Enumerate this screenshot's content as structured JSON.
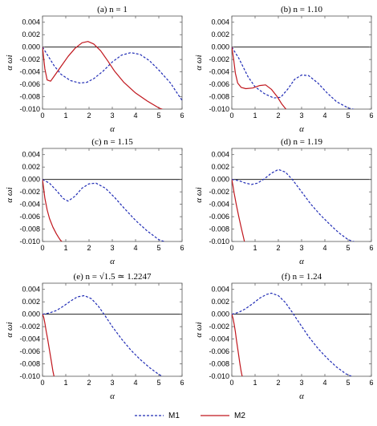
{
  "legend": {
    "m1_label": "M1",
    "m2_label": "M2",
    "m1_color": "#1f2bb5",
    "m2_color": "#c0161d"
  },
  "chart_data": [
    {
      "type": "line",
      "title": "(a) n = 1",
      "xlabel": "α",
      "ylabel": "α ωi",
      "xlim": [
        0,
        6
      ],
      "ylim": [
        -0.01,
        0.005
      ],
      "xticks": [
        "0",
        "1",
        "2",
        "3",
        "4",
        "5",
        "6"
      ],
      "yticks": [
        "0.004",
        "0.002",
        "0.000",
        "-0.002",
        "-0.004",
        "-0.006",
        "-0.008",
        "-0.010"
      ],
      "series": [
        {
          "name": "M1",
          "style": "dashed",
          "x": [
            0,
            0.2,
            0.5,
            0.8,
            1.2,
            1.6,
            1.9,
            2.2,
            2.6,
            3.0,
            3.4,
            3.8,
            4.2,
            4.6,
            5.0,
            5.5,
            6.0
          ],
          "y": [
            0.0,
            -0.0012,
            -0.003,
            -0.0044,
            -0.0054,
            -0.0058,
            -0.0057,
            -0.0051,
            -0.0039,
            -0.0024,
            -0.0013,
            -0.0009,
            -0.0012,
            -0.0022,
            -0.0037,
            -0.0058,
            -0.0086
          ]
        },
        {
          "name": "M2",
          "style": "solid",
          "x": [
            0,
            0.1,
            0.2,
            0.35,
            0.5,
            0.8,
            1.1,
            1.4,
            1.7,
            1.95,
            2.2,
            2.5,
            2.8,
            3.1,
            3.5,
            4.0,
            4.5,
            5.0,
            5.2
          ],
          "y": [
            0.0,
            -0.0035,
            -0.0053,
            -0.0055,
            -0.0047,
            -0.0031,
            -0.0015,
            -0.0002,
            0.0007,
            0.0009,
            0.0005,
            -0.0006,
            -0.0022,
            -0.0039,
            -0.0057,
            -0.0074,
            -0.0087,
            -0.0098,
            -0.0101
          ]
        }
      ]
    },
    {
      "type": "line",
      "title": "(b) n = 1.10",
      "xlabel": "α",
      "ylabel": "α ωi",
      "xlim": [
        0,
        6
      ],
      "ylim": [
        -0.01,
        0.005
      ],
      "xticks": [
        "0",
        "1",
        "2",
        "3",
        "4",
        "5",
        "6"
      ],
      "yticks": [
        "0.004",
        "0.002",
        "0.000",
        "-0.002",
        "-0.004",
        "-0.006",
        "-0.008",
        "-0.010"
      ],
      "series": [
        {
          "name": "M1",
          "style": "dashed",
          "x": [
            0,
            0.3,
            0.7,
            1.0,
            1.4,
            1.8,
            2.1,
            2.4,
            2.7,
            3.0,
            3.3,
            3.7,
            4.1,
            4.5,
            5.0,
            5.3
          ],
          "y": [
            0.0,
            -0.0018,
            -0.0048,
            -0.0064,
            -0.0075,
            -0.0082,
            -0.0081,
            -0.0068,
            -0.0052,
            -0.0045,
            -0.0046,
            -0.0058,
            -0.0074,
            -0.0088,
            -0.0098,
            -0.0101
          ]
        },
        {
          "name": "M2",
          "style": "solid",
          "x": [
            0,
            0.08,
            0.15,
            0.25,
            0.4,
            0.6,
            0.9,
            1.2,
            1.45,
            1.7,
            1.95,
            2.15,
            2.35
          ],
          "y": [
            0.0,
            -0.002,
            -0.0042,
            -0.0058,
            -0.0065,
            -0.0067,
            -0.0066,
            -0.0062,
            -0.0061,
            -0.0068,
            -0.008,
            -0.0092,
            -0.0101
          ]
        }
      ]
    },
    {
      "type": "line",
      "title": "(c) n = 1.15",
      "xlabel": "α",
      "ylabel": "α ωi",
      "xlim": [
        0,
        6
      ],
      "ylim": [
        -0.01,
        0.005
      ],
      "xticks": [
        "0",
        "1",
        "2",
        "3",
        "4",
        "5",
        "6"
      ],
      "yticks": [
        "0.004",
        "0.002",
        "0.000",
        "-0.002",
        "-0.004",
        "-0.006",
        "-0.008",
        "-0.010"
      ],
      "series": [
        {
          "name": "M1",
          "style": "dashed",
          "x": [
            0,
            0.3,
            0.6,
            0.9,
            1.1,
            1.4,
            1.7,
            2.0,
            2.3,
            2.7,
            3.1,
            3.5,
            4.0,
            4.5,
            5.0,
            5.3
          ],
          "y": [
            0.0,
            -0.0006,
            -0.0018,
            -0.0031,
            -0.0035,
            -0.0027,
            -0.0014,
            -0.0007,
            -0.0006,
            -0.0014,
            -0.0029,
            -0.0046,
            -0.0066,
            -0.0083,
            -0.0097,
            -0.0101
          ]
        },
        {
          "name": "M2",
          "style": "solid",
          "x": [
            0,
            0.05,
            0.1,
            0.2,
            0.3,
            0.45,
            0.6,
            0.75,
            0.85
          ],
          "y": [
            0.0,
            -0.0015,
            -0.003,
            -0.0049,
            -0.0063,
            -0.0077,
            -0.0088,
            -0.0097,
            -0.0101
          ]
        }
      ]
    },
    {
      "type": "line",
      "title": "(d) n = 1.19",
      "xlabel": "α",
      "ylabel": "α ωi",
      "xlim": [
        0,
        6
      ],
      "ylim": [
        -0.01,
        0.005
      ],
      "xticks": [
        "0",
        "1",
        "2",
        "3",
        "4",
        "5",
        "6"
      ],
      "yticks": [
        "0.004",
        "0.002",
        "0.000",
        "-0.002",
        "-0.004",
        "-0.006",
        "-0.008",
        "-0.010"
      ],
      "series": [
        {
          "name": "M1",
          "style": "dashed",
          "x": [
            0,
            0.3,
            0.6,
            0.85,
            1.1,
            1.4,
            1.7,
            2.0,
            2.3,
            2.6,
            3.0,
            3.4,
            3.8,
            4.2,
            4.6,
            5.0,
            5.3
          ],
          "y": [
            0.0,
            -0.0002,
            -0.0006,
            -0.0008,
            -0.0006,
            0.0001,
            0.001,
            0.0016,
            0.0012,
            0.0,
            -0.002,
            -0.004,
            -0.0057,
            -0.0072,
            -0.0086,
            -0.0097,
            -0.0101
          ]
        },
        {
          "name": "M2",
          "style": "solid",
          "x": [
            0,
            0.05,
            0.1,
            0.2,
            0.3,
            0.4,
            0.5,
            0.55
          ],
          "y": [
            0.0,
            -0.001,
            -0.0022,
            -0.0042,
            -0.006,
            -0.0077,
            -0.0093,
            -0.0101
          ]
        }
      ]
    },
    {
      "type": "line",
      "title": "(e) n = √1.5 ≃ 1.2247",
      "xlabel": "α",
      "ylabel": "α ωi",
      "xlim": [
        0,
        6
      ],
      "ylim": [
        -0.01,
        0.005
      ],
      "xticks": [
        "0",
        "1",
        "2",
        "3",
        "4",
        "5",
        "6"
      ],
      "yticks": [
        "0.004",
        "0.002",
        "0.000",
        "-0.002",
        "-0.004",
        "-0.006",
        "-0.008",
        "-0.010"
      ],
      "series": [
        {
          "name": "M1",
          "style": "dashed",
          "x": [
            0,
            0.3,
            0.6,
            0.9,
            1.2,
            1.5,
            1.8,
            2.1,
            2.4,
            2.7,
            3.0,
            3.4,
            3.8,
            4.2,
            4.6,
            5.0,
            5.2
          ],
          "y": [
            0.0,
            0.0002,
            0.0006,
            0.0013,
            0.0021,
            0.0028,
            0.003,
            0.0025,
            0.0013,
            -0.0003,
            -0.002,
            -0.004,
            -0.0058,
            -0.0073,
            -0.0086,
            -0.0097,
            -0.0101
          ]
        },
        {
          "name": "M2",
          "style": "solid",
          "x": [
            0,
            0.05,
            0.1,
            0.15,
            0.22,
            0.3,
            0.38,
            0.45,
            0.5
          ],
          "y": [
            0.0,
            -0.0005,
            -0.0014,
            -0.0026,
            -0.004,
            -0.0058,
            -0.0076,
            -0.0092,
            -0.0101
          ]
        }
      ]
    },
    {
      "type": "line",
      "title": "(f) n = 1.24",
      "xlabel": "α",
      "ylabel": "α ωi",
      "xlim": [
        0,
        6
      ],
      "ylim": [
        -0.01,
        0.005
      ],
      "xticks": [
        "0",
        "1",
        "2",
        "3",
        "4",
        "5",
        "6"
      ],
      "yticks": [
        "0.004",
        "0.002",
        "0.000",
        "-0.002",
        "-0.004",
        "-0.006",
        "-0.008",
        "-0.010"
      ],
      "series": [
        {
          "name": "M1",
          "style": "dashed",
          "x": [
            0,
            0.3,
            0.6,
            0.9,
            1.2,
            1.5,
            1.7,
            2.0,
            2.3,
            2.6,
            2.9,
            3.3,
            3.7,
            4.1,
            4.5,
            4.9,
            5.2
          ],
          "y": [
            0.0,
            0.0003,
            0.0009,
            0.0017,
            0.0026,
            0.0032,
            0.0034,
            0.003,
            0.0019,
            0.0003,
            -0.0014,
            -0.0036,
            -0.0055,
            -0.0071,
            -0.0085,
            -0.0096,
            -0.0101
          ]
        },
        {
          "name": "M2",
          "style": "solid",
          "x": [
            0,
            0.05,
            0.1,
            0.15,
            0.2,
            0.28,
            0.35,
            0.4,
            0.45
          ],
          "y": [
            0.0,
            -0.0006,
            -0.0016,
            -0.0028,
            -0.0042,
            -0.0062,
            -0.008,
            -0.0092,
            -0.0101
          ]
        }
      ]
    }
  ]
}
